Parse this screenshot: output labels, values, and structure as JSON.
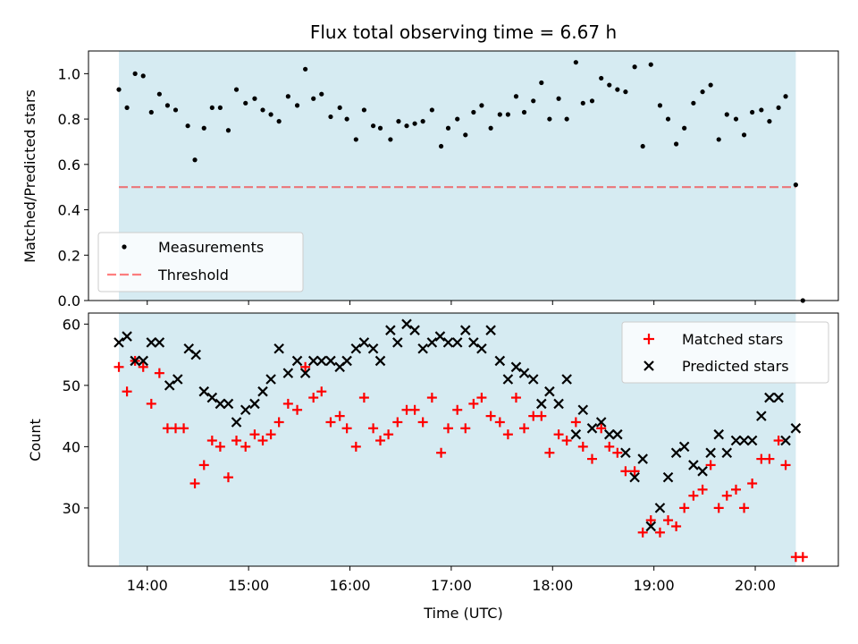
{
  "chart_data": [
    {
      "type": "scatter",
      "title": "Flux total observing time = 6.67 h",
      "xlabel": "",
      "ylabel": "Matched/Predicted stars",
      "ylim": [
        0,
        1.1
      ],
      "yticks": [
        "0.0",
        "0.2",
        "0.4",
        "0.6",
        "0.8",
        "1.0"
      ],
      "shaded_region_hours": [
        13.72,
        20.4
      ],
      "shade_color": "#add8e6",
      "legend": {
        "placement": "lower-left",
        "entries": [
          "Measurements",
          "Threshold"
        ]
      },
      "threshold": {
        "name": "Threshold",
        "value": 0.5,
        "color": "#ff0000"
      },
      "series": [
        {
          "name": "Measurements",
          "color": "#000000",
          "x": [
            13.72,
            13.8,
            13.88,
            13.96,
            14.04,
            14.12,
            14.2,
            14.28,
            14.4,
            14.47,
            14.56,
            14.64,
            14.72,
            14.8,
            14.88,
            14.97,
            15.06,
            15.14,
            15.22,
            15.3,
            15.39,
            15.48,
            15.56,
            15.64,
            15.72,
            15.81,
            15.9,
            15.97,
            16.06,
            16.14,
            16.23,
            16.3,
            16.4,
            16.48,
            16.56,
            16.64,
            16.72,
            16.81,
            16.9,
            16.97,
            17.06,
            17.14,
            17.22,
            17.3,
            17.39,
            17.48,
            17.56,
            17.64,
            17.72,
            17.81,
            17.89,
            17.97,
            18.06,
            18.14,
            18.23,
            18.3,
            18.39,
            18.48,
            18.56,
            18.64,
            18.72,
            18.81,
            18.89,
            18.97,
            19.06,
            19.14,
            19.22,
            19.3,
            19.39,
            19.48,
            19.56,
            19.64,
            19.72,
            19.81,
            19.89,
            19.97,
            20.06,
            20.14,
            20.23,
            20.3,
            20.4,
            20.47
          ],
          "y": [
            0.93,
            0.85,
            1.0,
            0.99,
            0.83,
            0.91,
            0.86,
            0.84,
            0.77,
            0.62,
            0.76,
            0.85,
            0.85,
            0.75,
            0.93,
            0.87,
            0.89,
            0.84,
            0.82,
            0.79,
            0.9,
            0.86,
            1.02,
            0.89,
            0.91,
            0.81,
            0.85,
            0.8,
            0.71,
            0.84,
            0.77,
            0.76,
            0.71,
            0.79,
            0.77,
            0.78,
            0.79,
            0.84,
            0.68,
            0.76,
            0.8,
            0.73,
            0.83,
            0.86,
            0.76,
            0.82,
            0.82,
            0.9,
            0.83,
            0.88,
            0.96,
            0.8,
            0.89,
            0.8,
            1.05,
            0.87,
            0.88,
            0.98,
            0.95,
            0.93,
            0.92,
            1.03,
            0.68,
            1.04,
            0.86,
            0.8,
            0.69,
            0.76,
            0.87,
            0.92,
            0.95,
            0.71,
            0.82,
            0.8,
            0.73,
            0.83,
            0.84,
            0.79,
            0.85,
            0.9,
            0.51,
            0.0
          ]
        }
      ]
    },
    {
      "type": "scatter",
      "title": "",
      "xlabel": "Time (UTC)",
      "ylabel": "Count",
      "xlim_hours": [
        13.42,
        20.82
      ],
      "xticks": [
        "14:00",
        "15:00",
        "16:00",
        "17:00",
        "18:00",
        "19:00",
        "20:00"
      ],
      "xtick_hours": [
        14,
        15,
        16,
        17,
        18,
        19,
        20
      ],
      "ylim": [
        20.5,
        61.8
      ],
      "yticks": [
        "30",
        "40",
        "50",
        "60"
      ],
      "shaded_region_hours": [
        13.72,
        20.4
      ],
      "shade_color": "#add8e6",
      "legend": {
        "placement": "top-right",
        "entries": [
          "Matched stars",
          "Predicted stars"
        ]
      },
      "series": [
        {
          "name": "Matched stars",
          "marker": "plus",
          "color": "#ff0000",
          "x": [
            13.72,
            13.8,
            13.88,
            13.96,
            14.04,
            14.12,
            14.2,
            14.28,
            14.36,
            14.47,
            14.56,
            14.64,
            14.72,
            14.8,
            14.88,
            14.97,
            15.06,
            15.14,
            15.22,
            15.3,
            15.39,
            15.48,
            15.56,
            15.64,
            15.72,
            15.81,
            15.9,
            15.97,
            16.06,
            16.14,
            16.23,
            16.3,
            16.38,
            16.47,
            16.56,
            16.64,
            16.72,
            16.81,
            16.9,
            16.97,
            17.06,
            17.14,
            17.22,
            17.3,
            17.39,
            17.48,
            17.56,
            17.64,
            17.72,
            17.81,
            17.89,
            17.97,
            18.06,
            18.14,
            18.23,
            18.3,
            18.39,
            18.48,
            18.56,
            18.64,
            18.72,
            18.81,
            18.89,
            18.97,
            19.06,
            19.14,
            19.22,
            19.3,
            19.39,
            19.48,
            19.56,
            19.64,
            19.72,
            19.81,
            19.89,
            19.97,
            20.06,
            20.14,
            20.23,
            20.3,
            20.4,
            20.47
          ],
          "y": [
            53,
            49,
            54,
            53,
            47,
            52,
            43,
            43,
            43,
            34,
            37,
            41,
            40,
            35,
            41,
            40,
            42,
            41,
            42,
            44,
            47,
            46,
            53,
            48,
            49,
            44,
            45,
            43,
            40,
            48,
            43,
            41,
            42,
            44,
            46,
            46,
            44,
            48,
            39,
            43,
            46,
            43,
            47,
            48,
            45,
            44,
            42,
            48,
            43,
            45,
            45,
            39,
            42,
            41,
            44,
            40,
            38,
            43,
            40,
            39,
            36,
            36,
            26,
            28,
            26,
            28,
            27,
            30,
            32,
            33,
            37,
            30,
            32,
            33,
            30,
            34,
            38,
            38,
            41,
            37,
            22,
            22
          ]
        },
        {
          "name": "Predicted stars",
          "marker": "x",
          "color": "#000000",
          "x": [
            13.72,
            13.8,
            13.88,
            13.96,
            14.04,
            14.12,
            14.22,
            14.3,
            14.41,
            14.48,
            14.56,
            14.64,
            14.72,
            14.8,
            14.88,
            14.97,
            15.06,
            15.14,
            15.22,
            15.3,
            15.39,
            15.48,
            15.56,
            15.64,
            15.72,
            15.81,
            15.9,
            15.97,
            16.06,
            16.14,
            16.23,
            16.3,
            16.4,
            16.47,
            16.56,
            16.64,
            16.72,
            16.81,
            16.89,
            16.97,
            17.06,
            17.14,
            17.22,
            17.3,
            17.39,
            17.48,
            17.56,
            17.64,
            17.72,
            17.81,
            17.89,
            17.97,
            18.06,
            18.14,
            18.23,
            18.3,
            18.39,
            18.48,
            18.56,
            18.64,
            18.72,
            18.81,
            18.89,
            18.97,
            19.06,
            19.14,
            19.22,
            19.3,
            19.39,
            19.48,
            19.56,
            19.64,
            19.72,
            19.81,
            19.89,
            19.97,
            20.06,
            20.14,
            20.23,
            20.3,
            20.4
          ],
          "y": [
            57,
            58,
            54,
            54,
            57,
            57,
            50,
            51,
            56,
            55,
            49,
            48,
            47,
            47,
            44,
            46,
            47,
            49,
            51,
            56,
            52,
            54,
            52,
            54,
            54,
            54,
            53,
            54,
            56,
            57,
            56,
            54,
            59,
            57,
            60,
            59,
            56,
            57,
            58,
            57,
            57,
            59,
            57,
            56,
            59,
            54,
            51,
            53,
            52,
            51,
            47,
            49,
            47,
            51,
            42,
            46,
            43,
            44,
            42,
            42,
            39,
            35,
            38,
            27,
            30,
            35,
            39,
            40,
            37,
            36,
            39,
            42,
            39,
            41,
            41,
            41,
            45,
            48,
            48,
            41,
            43
          ]
        }
      ]
    }
  ]
}
